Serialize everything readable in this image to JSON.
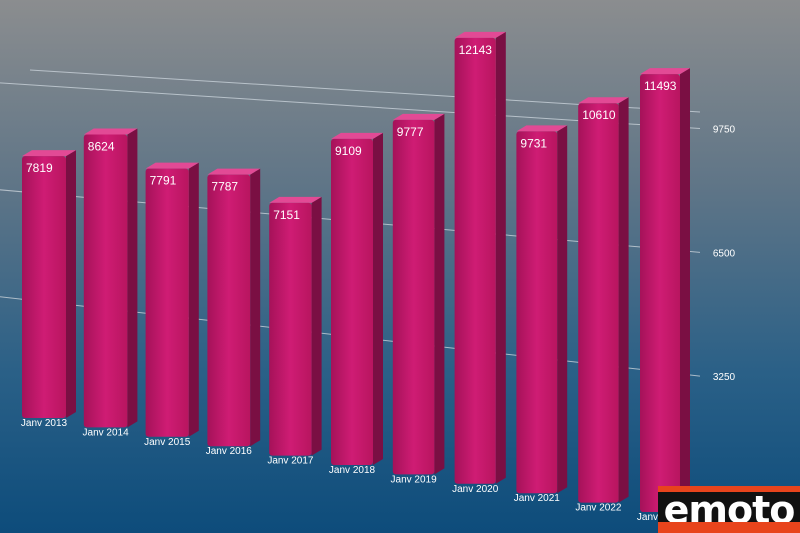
{
  "chart_data": {
    "type": "bar",
    "categories": [
      "Janv 2013",
      "Janv 2014",
      "Janv 2015",
      "Janv 2016",
      "Janv 2017",
      "Janv 2018",
      "Janv 2019",
      "Janv 2020",
      "Janv 2021",
      "Janv 2022",
      "Janv 2023"
    ],
    "values": [
      7819,
      8624,
      7791,
      7787,
      7151,
      9109,
      9777,
      12143,
      9731,
      10610,
      11493
    ],
    "data_labels": [
      "7819",
      "8624",
      "7791",
      "7787",
      "7151",
      "9109",
      "9777",
      "12143",
      "9731",
      "10610",
      "11493"
    ],
    "y_ticks": [
      "3250",
      "6500",
      "9750"
    ],
    "y_tick_values": [
      3250,
      6500,
      9750
    ],
    "ylim": [
      0,
      13000
    ],
    "grid": true,
    "style": "3d-perspective",
    "colors": {
      "bar": "#c8186e",
      "bar_top": "#e24a95",
      "bar_side": "#7a0f43",
      "background_top": "#8a8c8e",
      "background_bottom": "#0e4f7e",
      "label": "#ffffff"
    }
  },
  "watermark": {
    "text": "emoto",
    "colors": {
      "background": "#111111",
      "text": "#ffffff",
      "accent": "#e8441c"
    }
  }
}
